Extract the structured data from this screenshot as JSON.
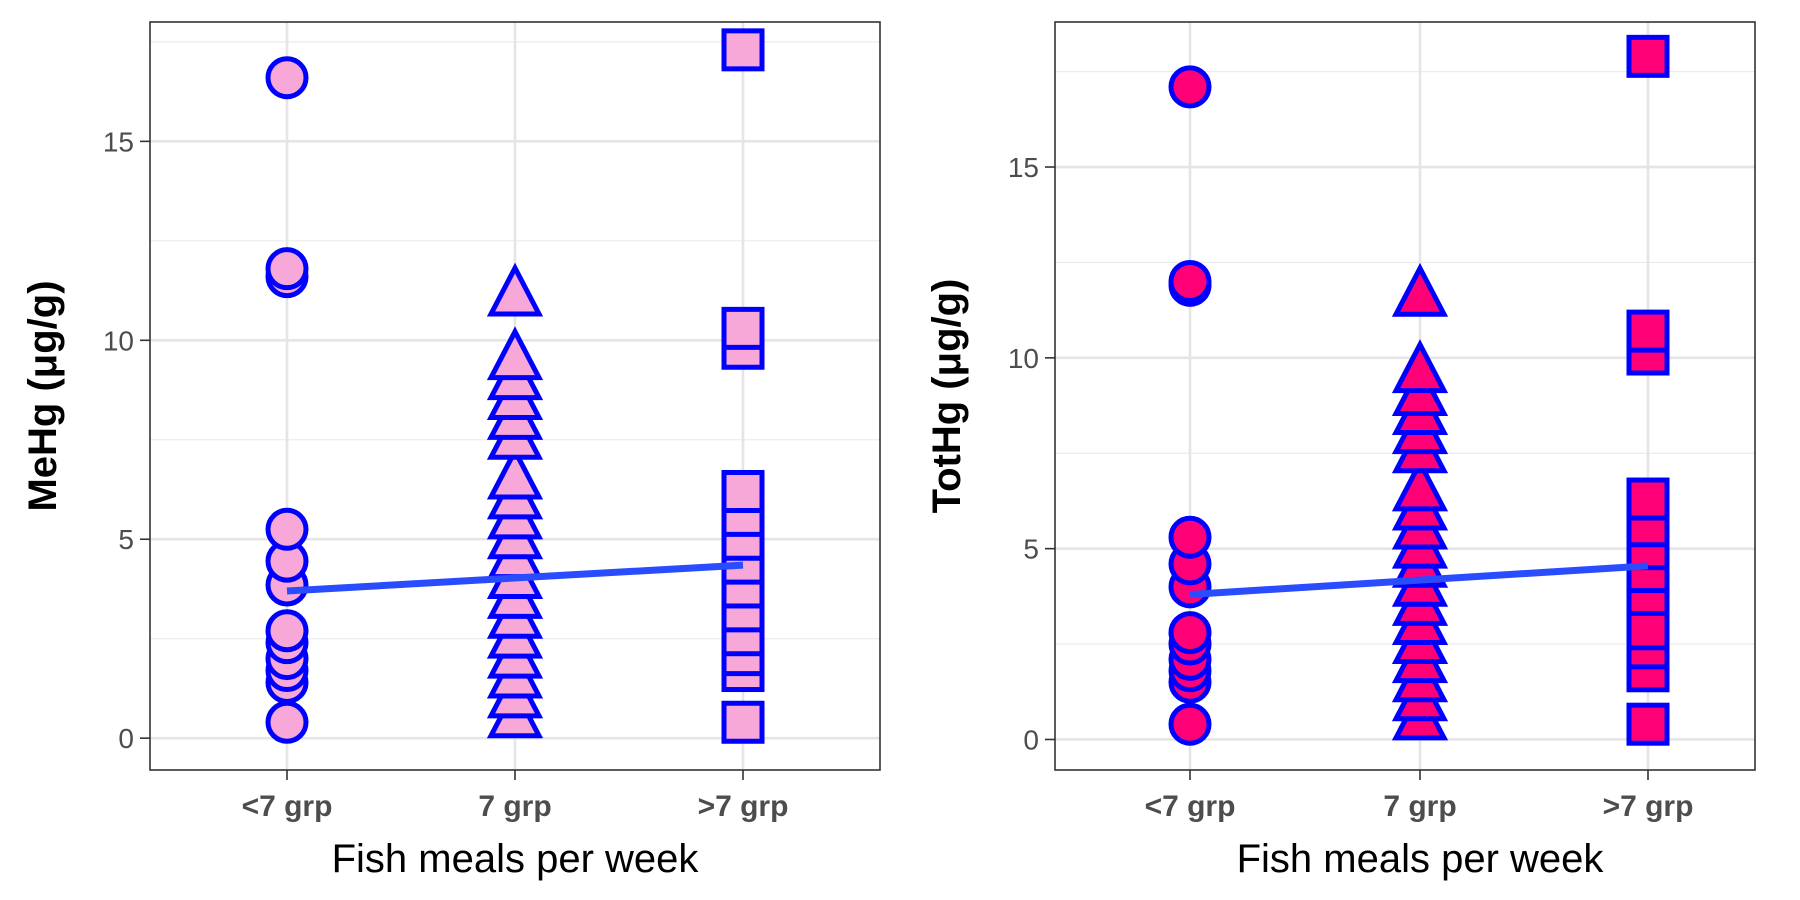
{
  "chart_data": [
    {
      "type": "scatter",
      "xlabel": "Fish meals per week",
      "ylabel": "MeHg (μg/g)",
      "categories": [
        "<7 grp",
        "7 grp",
        ">7 grp"
      ],
      "yticks": [
        0,
        5,
        10,
        15
      ],
      "ylim": [
        -0.8,
        18.0
      ],
      "grid": true,
      "fill_color": "#f7a8d8",
      "stroke_color": "#0000ff",
      "trend_color": "#2a4cff",
      "trend_line": [
        3.7,
        4.35
      ],
      "groups": [
        {
          "category": "<7 grp",
          "shape": "circle",
          "values": [
            0.4,
            1.4,
            1.7,
            2.0,
            2.4,
            2.7,
            3.85,
            4.45,
            5.25,
            11.6,
            11.8,
            16.6
          ]
        },
        {
          "category": "7 grp",
          "shape": "triangle",
          "values": [
            0.5,
            1.0,
            1.5,
            2.0,
            2.5,
            3.0,
            3.5,
            4.0,
            4.5,
            5.0,
            5.5,
            6.0,
            6.5,
            7.5,
            8.0,
            8.5,
            9.0,
            9.5,
            11.1
          ]
        },
        {
          "category": ">7 grp",
          "shape": "square",
          "values": [
            0.4,
            1.7,
            2.1,
            2.6,
            3.2,
            3.8,
            4.4,
            5.0,
            5.6,
            6.2,
            9.8,
            10.3,
            17.3
          ]
        }
      ]
    },
    {
      "type": "scatter",
      "xlabel": "Fish meals per week",
      "ylabel": "TotHg (μg/g)",
      "categories": [
        "<7 grp",
        "7 grp",
        ">7 grp"
      ],
      "yticks": [
        0,
        5,
        10,
        15
      ],
      "ylim": [
        -0.8,
        18.8
      ],
      "grid": true,
      "fill_color": "#ff0077",
      "stroke_color": "#0000ff",
      "trend_color": "#2a4cff",
      "trend_line": [
        3.8,
        4.55
      ],
      "groups": [
        {
          "category": "<7 grp",
          "shape": "circle",
          "values": [
            0.4,
            1.5,
            1.8,
            2.1,
            2.5,
            2.8,
            4.0,
            4.6,
            5.3,
            11.9,
            12.0,
            17.1
          ]
        },
        {
          "category": "7 grp",
          "shape": "triangle",
          "values": [
            0.5,
            1.0,
            1.5,
            2.0,
            2.5,
            3.0,
            3.5,
            4.0,
            4.5,
            5.0,
            5.5,
            6.0,
            6.5,
            7.5,
            8.0,
            8.5,
            9.0,
            9.6,
            11.6
          ]
        },
        {
          "category": ">7 grp",
          "shape": "square",
          "values": [
            0.4,
            1.8,
            2.4,
            2.9,
            3.8,
            4.4,
            5.0,
            5.6,
            6.3,
            10.1,
            10.7,
            17.9
          ]
        }
      ]
    }
  ]
}
